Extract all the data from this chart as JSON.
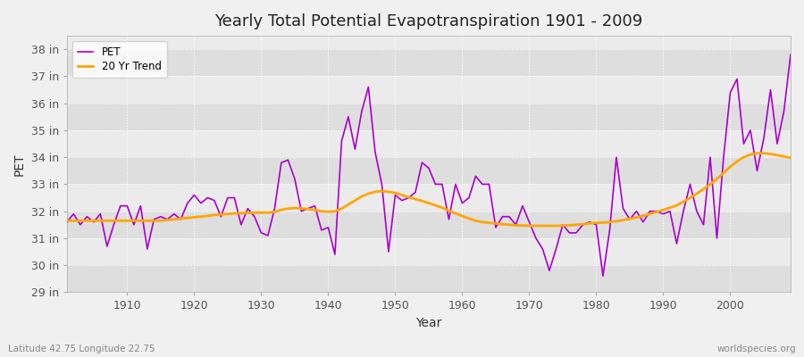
{
  "title": "Yearly Total Potential Evapotranspiration 1901 - 2009",
  "xlabel": "Year",
  "ylabel": "PET",
  "footnote_left": "Latitude 42.75 Longitude 22.75",
  "footnote_right": "worldspecies.org",
  "pet_color": "#AA00CC",
  "trend_color": "#FFA500",
  "background_color": "#F0F0F0",
  "plot_bg_light": "#EBEBEB",
  "plot_bg_dark": "#DEDEDE",
  "grid_color": "#FFFFFF",
  "ylim_min": 29,
  "ylim_max": 38.5,
  "xlim_min": 1901,
  "xlim_max": 2009,
  "ytick_labels": [
    "29 in",
    "30 in",
    "31 in",
    "32 in",
    "33 in",
    "34 in",
    "35 in",
    "36 in",
    "37 in",
    "38 in"
  ],
  "ytick_values": [
    29,
    30,
    31,
    32,
    33,
    34,
    35,
    36,
    37,
    38
  ],
  "xtick_values": [
    1910,
    1920,
    1930,
    1940,
    1950,
    1960,
    1970,
    1980,
    1990,
    2000
  ],
  "years": [
    1901,
    1902,
    1903,
    1904,
    1905,
    1906,
    1907,
    1908,
    1909,
    1910,
    1911,
    1912,
    1913,
    1914,
    1915,
    1916,
    1917,
    1918,
    1919,
    1920,
    1921,
    1922,
    1923,
    1924,
    1925,
    1926,
    1927,
    1928,
    1929,
    1930,
    1931,
    1932,
    1933,
    1934,
    1935,
    1936,
    1937,
    1938,
    1939,
    1940,
    1941,
    1942,
    1943,
    1944,
    1945,
    1946,
    1947,
    1948,
    1949,
    1950,
    1951,
    1952,
    1953,
    1954,
    1955,
    1956,
    1957,
    1958,
    1959,
    1960,
    1961,
    1962,
    1963,
    1964,
    1965,
    1966,
    1967,
    1968,
    1969,
    1970,
    1971,
    1972,
    1973,
    1974,
    1975,
    1976,
    1977,
    1978,
    1979,
    1980,
    1981,
    1982,
    1983,
    1984,
    1985,
    1986,
    1987,
    1988,
    1989,
    1990,
    1991,
    1992,
    1993,
    1994,
    1995,
    1996,
    1997,
    1998,
    1999,
    2000,
    2001,
    2002,
    2003,
    2004,
    2005,
    2006,
    2007,
    2008,
    2009
  ],
  "pet_values": [
    31.6,
    31.9,
    31.5,
    31.8,
    31.6,
    31.9,
    30.7,
    31.5,
    32.2,
    32.2,
    31.5,
    32.2,
    30.6,
    31.7,
    31.8,
    31.7,
    31.9,
    31.7,
    32.3,
    32.6,
    32.3,
    32.5,
    32.4,
    31.8,
    32.5,
    32.5,
    31.5,
    32.1,
    31.8,
    31.2,
    31.1,
    32.1,
    33.8,
    33.9,
    33.2,
    32.0,
    32.1,
    32.2,
    31.3,
    31.4,
    30.4,
    34.6,
    35.5,
    34.3,
    35.7,
    36.6,
    34.2,
    33.0,
    30.5,
    32.6,
    32.4,
    32.5,
    32.7,
    33.8,
    33.6,
    33.0,
    33.0,
    31.7,
    33.0,
    32.3,
    32.5,
    33.3,
    33.0,
    33.0,
    31.4,
    31.8,
    31.8,
    31.5,
    32.2,
    31.6,
    31.0,
    30.6,
    29.8,
    30.6,
    31.5,
    31.2,
    31.2,
    31.5,
    31.6,
    31.5,
    29.6,
    31.3,
    34.0,
    32.1,
    31.7,
    32.0,
    31.6,
    32.0,
    32.0,
    31.9,
    32.0,
    30.8,
    32.0,
    33.0,
    32.0,
    31.5,
    34.0,
    31.0,
    34.0,
    36.4,
    36.9,
    34.5,
    35.0,
    33.5,
    34.7,
    36.5,
    34.5,
    35.7,
    37.8
  ],
  "trend_values": [
    31.65,
    31.65,
    31.65,
    31.65,
    31.65,
    31.65,
    31.65,
    31.65,
    31.65,
    31.65,
    31.65,
    31.65,
    31.65,
    31.65,
    31.65,
    31.68,
    31.7,
    31.73,
    31.75,
    31.78,
    31.8,
    31.83,
    31.86,
    31.88,
    31.9,
    31.92,
    31.93,
    31.94,
    31.95,
    31.95,
    31.95,
    31.98,
    32.05,
    32.1,
    32.12,
    32.1,
    32.08,
    32.05,
    32.0,
    31.98,
    32.0,
    32.1,
    32.25,
    32.4,
    32.55,
    32.65,
    32.72,
    32.75,
    32.72,
    32.68,
    32.6,
    32.52,
    32.45,
    32.38,
    32.3,
    32.22,
    32.13,
    32.02,
    31.92,
    31.82,
    31.73,
    31.65,
    31.6,
    31.57,
    31.55,
    31.52,
    31.5,
    31.48,
    31.47,
    31.46,
    31.46,
    31.46,
    31.46,
    31.46,
    31.47,
    31.48,
    31.5,
    31.52,
    31.55,
    31.57,
    31.58,
    31.6,
    31.63,
    31.67,
    31.72,
    31.77,
    31.83,
    31.9,
    31.98,
    32.05,
    32.13,
    32.22,
    32.35,
    32.5,
    32.65,
    32.82,
    33.0,
    33.2,
    33.42,
    33.65,
    33.85,
    34.0,
    34.1,
    34.15,
    34.15,
    34.12,
    34.08,
    34.03,
    33.98
  ]
}
